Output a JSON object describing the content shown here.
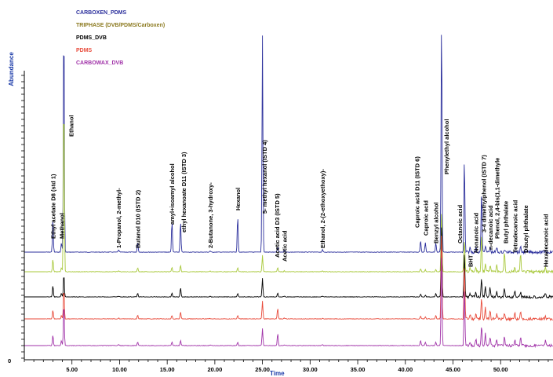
{
  "chart_data": {
    "type": "line",
    "title": "",
    "xlabel": "Time",
    "ylabel": "Abundance",
    "xlim": [
      0,
      55.5
    ],
    "x_ticks": [
      5,
      10,
      15,
      20,
      25,
      30,
      35,
      40,
      45,
      50
    ],
    "x_tick_labels": [
      "5.00",
      "10.00",
      "15.00",
      "20.00",
      "25.00",
      "30.00",
      "35.00",
      "40.00",
      "45.00",
      "50.00"
    ],
    "y_origin_label": "0",
    "colors": {
      "axis_title": "#1a3aa8",
      "blue": "#2b2f9c",
      "olive": "#8c7a20",
      "black": "#000000",
      "red": "#e84a3a",
      "purple": "#a032a8",
      "yellowgreen": "#a8c83a"
    },
    "series": [
      {
        "name": "CARBOXEN_PDMS",
        "color": "#2b2f9c",
        "legend_color": "#2b2f9c"
      },
      {
        "name": "TRIPHASE (DVB/PDMS/Carboxen)",
        "color": "#a8c83a",
        "legend_color": "#8c7a20"
      },
      {
        "name": "PDMS_DVB",
        "color": "#000000",
        "legend_color": "#000000"
      },
      {
        "name": "PDMS",
        "color": "#e84a3a",
        "legend_color": "#e84a3a"
      },
      {
        "name": "CARBOWAX_DVB",
        "color": "#a032a8",
        "legend_color": "#a032a8"
      }
    ],
    "peak_labels": [
      {
        "t": 3.0,
        "text": "Ethyl acetate D8 (std 1)"
      },
      {
        "t": 3.9,
        "text": "Methanol"
      },
      {
        "t": 4.9,
        "text": "Ethanol"
      },
      {
        "t": 9.9,
        "text": "1-Propanol, 2-methyl-"
      },
      {
        "t": 11.9,
        "text": "Butanol D10 (ISTD 2)"
      },
      {
        "t": 15.5,
        "text": "amyl+isoamyl alcohol"
      },
      {
        "t": 16.7,
        "text": "ethyl hexanoate D11 (ISTD 3)"
      },
      {
        "t": 19.5,
        "text": "2-Butanone, 3-hydroxy-"
      },
      {
        "t": 22.4,
        "text": "Hexanol"
      },
      {
        "t": 25.2,
        "text": "5- methyl hexanol (ISTD 4)"
      },
      {
        "t": 26.5,
        "text": "Acetic acid D3 (ISTD 5)"
      },
      {
        "t": 27.3,
        "text": "Acetic acid"
      },
      {
        "t": 31.3,
        "text": "Ethanol, 2-(2-ethoxyethoxy)-"
      },
      {
        "t": 41.2,
        "text": "Caproic acid D11 (ISTD 6)"
      },
      {
        "t": 42.1,
        "text": "Caproic acid"
      },
      {
        "t": 43.2,
        "text": "Benzyl alcohol"
      },
      {
        "t": 44.3,
        "text": "Phenylethyl alcohol"
      },
      {
        "t": 45.7,
        "text": "Octanoic acid"
      },
      {
        "t": 46.8,
        "text": "BHT"
      },
      {
        "t": 47.4,
        "text": "Nonanoic acid"
      },
      {
        "t": 48.2,
        "text": "3-4 dimethylphenol (ISTD 7)"
      },
      {
        "t": 48.9,
        "text": "n-decanoic acid"
      },
      {
        "t": 49.6,
        "text": "Phenol, 2,4-bis(1,1-dimethyle"
      },
      {
        "t": 50.5,
        "text": "Butyl phthalate"
      },
      {
        "t": 51.5,
        "text": "Tetradecanoic acid"
      },
      {
        "t": 52.6,
        "text": "Dibutyl phthalate"
      },
      {
        "t": 54.7,
        "text": "Hexadecanoic acid"
      }
    ],
    "peaks": [
      {
        "t": 3.0,
        "h": [
          0.14,
          0.06,
          0.06,
          0.05,
          0.06
        ]
      },
      {
        "t": 3.9,
        "h": [
          0.04,
          0.02,
          0.02,
          0.02,
          0.03
        ]
      },
      {
        "t": 4.15,
        "h": [
          1.0,
          0.85,
          0.12,
          0.17,
          0.25
        ]
      },
      {
        "t": 9.9,
        "h": [
          0.01,
          0.005,
          0.005,
          0.005,
          0.005
        ]
      },
      {
        "t": 11.9,
        "h": [
          0.04,
          0.02,
          0.02,
          0.02,
          0.02
        ]
      },
      {
        "t": 15.5,
        "h": [
          0.13,
          0.02,
          0.02,
          0.02,
          0.02
        ]
      },
      {
        "t": 16.4,
        "h": [
          0.13,
          0.03,
          0.05,
          0.04,
          0.03
        ]
      },
      {
        "t": 19.5,
        "h": [
          0.005,
          0.003,
          0.003,
          0.003,
          0.003
        ]
      },
      {
        "t": 22.4,
        "h": [
          0.15,
          0.02,
          0.02,
          0.02,
          0.02
        ]
      },
      {
        "t": 25.0,
        "h": [
          0.92,
          0.08,
          0.1,
          0.1,
          0.1
        ]
      },
      {
        "t": 26.6,
        "h": [
          0.02,
          0.02,
          0.02,
          0.06,
          0.07
        ]
      },
      {
        "t": 27.3,
        "h": [
          0.01,
          0.005,
          0.005,
          0.005,
          0.005
        ]
      },
      {
        "t": 31.3,
        "h": [
          0.01,
          0.005,
          0.005,
          0.005,
          0.005
        ]
      },
      {
        "t": 41.6,
        "h": [
          0.05,
          0.015,
          0.015,
          0.015,
          0.03
        ]
      },
      {
        "t": 42.1,
        "h": [
          0.04,
          0.01,
          0.01,
          0.01,
          0.02
        ]
      },
      {
        "t": 43.2,
        "h": [
          0.04,
          0.01,
          0.02,
          0.02,
          0.02
        ]
      },
      {
        "t": 43.8,
        "h": [
          1.0,
          0.3,
          0.4,
          0.5,
          0.55
        ]
      },
      {
        "t": 46.2,
        "h": [
          0.4,
          0.16,
          0.24,
          0.3,
          0.34
        ]
      },
      {
        "t": 46.8,
        "h": [
          0.02,
          0.02,
          0.02,
          0.02,
          0.02
        ]
      },
      {
        "t": 47.4,
        "h": [
          0.02,
          0.02,
          0.03,
          0.03,
          0.04
        ]
      },
      {
        "t": 48.0,
        "h": [
          0.26,
          0.18,
          0.1,
          0.12,
          0.12
        ]
      },
      {
        "t": 48.4,
        "h": [
          0.03,
          0.04,
          0.06,
          0.06,
          0.07
        ]
      },
      {
        "t": 48.9,
        "h": [
          0.02,
          0.03,
          0.05,
          0.05,
          0.05
        ]
      },
      {
        "t": 49.6,
        "h": [
          0.02,
          0.03,
          0.03,
          0.03,
          0.04
        ]
      },
      {
        "t": 50.4,
        "h": [
          0.01,
          0.1,
          0.05,
          0.03,
          0.05
        ]
      },
      {
        "t": 51.5,
        "h": [
          0.01,
          0.02,
          0.03,
          0.03,
          0.04
        ]
      },
      {
        "t": 52.1,
        "h": [
          0.02,
          0.09,
          0.03,
          0.04,
          0.05
        ]
      },
      {
        "t": 54.7,
        "h": [
          0.01,
          0.02,
          0.02,
          0.02,
          0.03
        ]
      }
    ]
  }
}
